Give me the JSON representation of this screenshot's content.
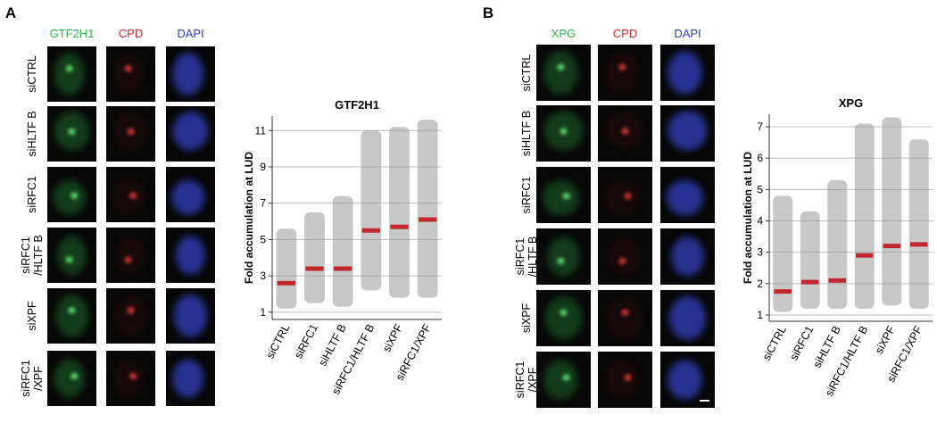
{
  "panels": [
    {
      "label": "A",
      "channels": [
        {
          "name": "GTF2H1",
          "color": "#2eb84b"
        },
        {
          "name": "CPD",
          "color": "#d42a2a"
        },
        {
          "name": "DAPI",
          "color": "#3040c0"
        }
      ],
      "rows": [
        [
          "siCTRL"
        ],
        [
          "siHLTF B"
        ],
        [
          "siRFC1"
        ],
        [
          "siRFC1",
          "/HLTF B"
        ],
        [
          "siXPF"
        ],
        [
          "siRFC1",
          "/XPF"
        ]
      ]
    },
    {
      "label": "B",
      "channels": [
        {
          "name": "XPG",
          "color": "#2eb84b"
        },
        {
          "name": "CPD",
          "color": "#d42a2a"
        },
        {
          "name": "DAPI",
          "color": "#3040c0"
        }
      ],
      "rows": [
        [
          "siCTRL"
        ],
        [
          "siHLTF B"
        ],
        [
          "siRFC1"
        ],
        [
          "siRFC1",
          "/HLTF B"
        ],
        [
          "siXPF"
        ],
        [
          "siRFC1",
          "/XPF"
        ]
      ]
    }
  ],
  "chart_data": [
    {
      "type": "strip",
      "title": "GTF2H1",
      "y_label": "Fold accumulation at LUD",
      "categories": [
        "siCTRL",
        "siRFC1",
        "siHLTF B",
        "siRFC1/HLTF B",
        "siXPF",
        "siRFC1/XPF"
      ],
      "values": [
        2.6,
        3.4,
        3.4,
        5.5,
        5.7,
        6.1
      ],
      "ranges": [
        [
          1.2,
          5.6
        ],
        [
          1.5,
          6.5
        ],
        [
          1.3,
          7.4
        ],
        [
          2.2,
          11
        ],
        [
          1.8,
          11.2
        ],
        [
          1.8,
          11.6
        ]
      ],
      "color": "#c0282d",
      "point_color": "#9a9a9a",
      "ylim": [
        0.6,
        11.8
      ],
      "yticks": [
        1,
        3,
        5,
        7,
        9,
        11
      ],
      "grid": true
    },
    {
      "type": "strip",
      "title": "XPG",
      "y_label": "Fold accumulation at LUD",
      "categories": [
        "siCTRL",
        "siRFC1",
        "siHLTF B",
        "siRFC1/HLTF B",
        "siXPF",
        "siRFC1/XPF"
      ],
      "values": [
        1.75,
        2.05,
        2.1,
        2.9,
        3.2,
        3.25
      ],
      "ranges": [
        [
          1.1,
          4.8
        ],
        [
          1.2,
          4.3
        ],
        [
          1.2,
          5.3
        ],
        [
          1.2,
          7.1
        ],
        [
          1.3,
          7.3
        ],
        [
          1.2,
          6.6
        ]
      ],
      "color": "#c0282d",
      "point_color": "#9a9a9a",
      "ylim": [
        0.8,
        7.4
      ],
      "yticks": [
        1,
        2,
        3,
        4,
        5,
        6,
        7
      ],
      "grid": true
    }
  ]
}
